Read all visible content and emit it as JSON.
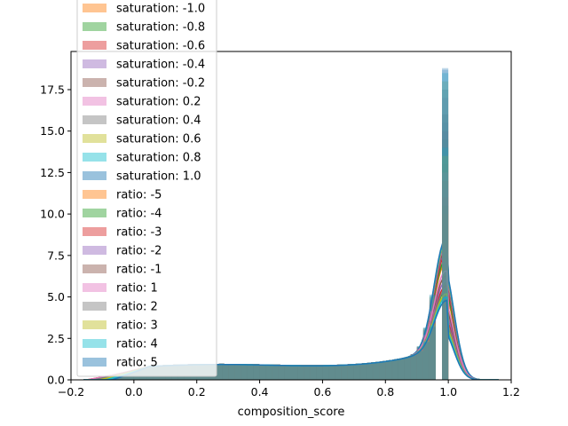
{
  "chart_data": {
    "type": "histogram-kde",
    "xlabel": "composition_score",
    "ylabel": "",
    "xlim": [
      -0.2,
      1.2
    ],
    "ylim": [
      0,
      19.8
    ],
    "xticks": [
      -0.2,
      0.0,
      0.2,
      0.4,
      0.6,
      0.8,
      1.0,
      1.2
    ],
    "xtick_labels": [
      "−0.2",
      "0.0",
      "0.2",
      "0.4",
      "0.6",
      "0.8",
      "1.0",
      "1.2"
    ],
    "yticks": [
      0.0,
      2.5,
      5.0,
      7.5,
      10.0,
      12.5,
      15.0,
      17.5
    ],
    "ytick_labels": [
      "0.0",
      "2.5",
      "5.0",
      "7.5",
      "10.0",
      "12.5",
      "15.0",
      "17.5"
    ],
    "legend_position": "upper-left",
    "grid": false,
    "series": [
      {
        "name": "saturation: -1.0",
        "color": "#ff7f0e",
        "kde_peak": 5.0,
        "hist_peak": 14.0
      },
      {
        "name": "saturation: -0.8",
        "color": "#2ca02c",
        "kde_peak": 5.2,
        "hist_peak": 14.5
      },
      {
        "name": "saturation: -0.6",
        "color": "#d62728",
        "kde_peak": 5.5,
        "hist_peak": 15.0
      },
      {
        "name": "saturation: -0.4",
        "color": "#9467bd",
        "kde_peak": 5.7,
        "hist_peak": 15.5
      },
      {
        "name": "saturation: -0.2",
        "color": "#8c564b",
        "kde_peak": 5.8,
        "hist_peak": 16.0
      },
      {
        "name": "saturation: 0.2",
        "color": "#e377c2",
        "kde_peak": 6.0,
        "hist_peak": 17.0
      },
      {
        "name": "saturation: 0.4",
        "color": "#7f7f7f",
        "kde_peak": 6.1,
        "hist_peak": 17.5
      },
      {
        "name": "saturation: 0.6",
        "color": "#bcbd22",
        "kde_peak": 6.2,
        "hist_peak": 18.0
      },
      {
        "name": "saturation: 0.8",
        "color": "#17becf",
        "kde_peak": 6.3,
        "hist_peak": 18.5
      },
      {
        "name": "saturation: 1.0",
        "color": "#1f77b4",
        "kde_peak": 6.4,
        "hist_peak": 18.8
      },
      {
        "name": "ratio: -5",
        "color": "#ff7f0e",
        "kde_peak": 3.0,
        "hist_peak": 10.0
      },
      {
        "name": "ratio: -4",
        "color": "#2ca02c",
        "kde_peak": 3.3,
        "hist_peak": 10.5
      },
      {
        "name": "ratio: -3",
        "color": "#d62728",
        "kde_peak": 3.6,
        "hist_peak": 11.0
      },
      {
        "name": "ratio: -2",
        "color": "#9467bd",
        "kde_peak": 3.9,
        "hist_peak": 11.5
      },
      {
        "name": "ratio: -1",
        "color": "#8c564b",
        "kde_peak": 4.2,
        "hist_peak": 12.0
      },
      {
        "name": "ratio: 1",
        "color": "#e377c2",
        "kde_peak": 4.5,
        "hist_peak": 12.5
      },
      {
        "name": "ratio: 2",
        "color": "#7f7f7f",
        "kde_peak": 3.4,
        "hist_peak": 13.0
      },
      {
        "name": "ratio: 3",
        "color": "#bcbd22",
        "kde_peak": 3.1,
        "hist_peak": 13.5
      },
      {
        "name": "ratio: 4",
        "color": "#17becf",
        "kde_peak": 2.9,
        "hist_peak": 14.0
      },
      {
        "name": "ratio: 5",
        "color": "#1f77b4",
        "kde_peak": 2.7,
        "hist_peak": 18.7
      }
    ]
  }
}
